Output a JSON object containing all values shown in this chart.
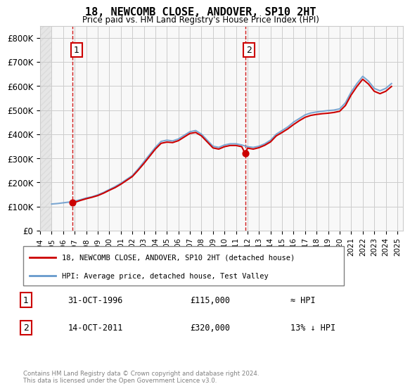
{
  "title": "18, NEWCOMB CLOSE, ANDOVER, SP10 2HT",
  "subtitle": "Price paid vs. HM Land Registry's House Price Index (HPI)",
  "legend_label1": "18, NEWCOMB CLOSE, ANDOVER, SP10 2HT (detached house)",
  "legend_label2": "HPI: Average price, detached house, Test Valley",
  "annotation1_label": "1",
  "annotation1_date": "31-OCT-1996",
  "annotation1_price": "£115,000",
  "annotation1_rel": "≈ HPI",
  "annotation2_label": "2",
  "annotation2_date": "14-OCT-2011",
  "annotation2_price": "£320,000",
  "annotation2_rel": "13% ↓ HPI",
  "footnote": "Contains HM Land Registry data © Crown copyright and database right 2024.\nThis data is licensed under the Open Government Licence v3.0.",
  "price_color": "#cc0000",
  "hpi_color": "#6699cc",
  "annotation_color": "#cc0000",
  "ylim": [
    0,
    850000
  ],
  "yticks": [
    0,
    100000,
    200000,
    300000,
    400000,
    500000,
    600000,
    700000,
    800000
  ],
  "xlim_start": 1994.0,
  "xlim_end": 2025.5,
  "purchase1_x": 1996.83,
  "purchase1_y": 115000,
  "purchase2_x": 2011.79,
  "purchase2_y": 320000,
  "hpi_years": [
    1995.0,
    1995.5,
    1996.0,
    1996.5,
    1997.0,
    1997.5,
    1998.0,
    1998.5,
    1999.0,
    1999.5,
    2000.0,
    2000.5,
    2001.0,
    2001.5,
    2002.0,
    2002.5,
    2003.0,
    2003.5,
    2004.0,
    2004.5,
    2005.0,
    2005.5,
    2006.0,
    2006.5,
    2007.0,
    2007.5,
    2008.0,
    2008.5,
    2009.0,
    2009.5,
    2010.0,
    2010.5,
    2011.0,
    2011.5,
    2012.0,
    2012.5,
    2013.0,
    2013.5,
    2014.0,
    2014.5,
    2015.0,
    2015.5,
    2016.0,
    2016.5,
    2017.0,
    2017.5,
    2018.0,
    2018.5,
    2019.0,
    2019.5,
    2020.0,
    2020.5,
    2021.0,
    2021.5,
    2022.0,
    2022.5,
    2023.0,
    2023.5,
    2024.0,
    2024.5
  ],
  "hpi_values": [
    110000,
    112000,
    115000,
    118000,
    122000,
    128000,
    135000,
    140000,
    148000,
    158000,
    170000,
    182000,
    196000,
    212000,
    228000,
    255000,
    285000,
    315000,
    345000,
    370000,
    375000,
    372000,
    380000,
    395000,
    410000,
    415000,
    400000,
    375000,
    350000,
    345000,
    355000,
    360000,
    360000,
    355000,
    348000,
    345000,
    350000,
    360000,
    375000,
    400000,
    415000,
    430000,
    450000,
    465000,
    480000,
    488000,
    492000,
    495000,
    498000,
    500000,
    505000,
    530000,
    575000,
    610000,
    640000,
    620000,
    590000,
    580000,
    590000,
    610000
  ],
  "price_years": [
    1996.83,
    1996.9,
    1997.0,
    1997.2,
    1997.5,
    1998.0,
    1998.5,
    1999.0,
    1999.5,
    2000.0,
    2000.5,
    2001.0,
    2001.5,
    2002.0,
    2002.5,
    2003.0,
    2003.5,
    2004.0,
    2004.5,
    2005.0,
    2005.5,
    2006.0,
    2006.5,
    2007.0,
    2007.5,
    2008.0,
    2008.5,
    2009.0,
    2009.5,
    2010.0,
    2010.5,
    2011.0,
    2011.5,
    2011.79,
    2012.0,
    2012.5,
    2013.0,
    2013.5,
    2014.0,
    2014.5,
    2015.0,
    2015.5,
    2016.0,
    2016.5,
    2017.0,
    2017.5,
    2018.0,
    2018.5,
    2019.0,
    2019.5,
    2020.0,
    2020.5,
    2021.0,
    2021.5,
    2022.0,
    2022.5,
    2023.0,
    2023.5,
    2024.0,
    2024.5
  ],
  "price_values": [
    115000,
    116000,
    118000,
    120000,
    125000,
    132000,
    138000,
    145000,
    155000,
    167000,
    178000,
    192000,
    208000,
    224000,
    250000,
    278000,
    308000,
    338000,
    362000,
    367000,
    365000,
    373000,
    388000,
    403000,
    407000,
    393000,
    368000,
    343000,
    338000,
    348000,
    353000,
    353000,
    348000,
    320000,
    342000,
    338000,
    344000,
    354000,
    368000,
    393000,
    407000,
    422000,
    440000,
    456000,
    470000,
    478000,
    482000,
    485000,
    487000,
    490000,
    495000,
    519000,
    563000,
    598000,
    628000,
    608000,
    578000,
    568000,
    578000,
    598000
  ],
  "xticks": [
    1994,
    1995,
    1996,
    1997,
    1998,
    1999,
    2000,
    2001,
    2002,
    2003,
    2004,
    2005,
    2006,
    2007,
    2008,
    2009,
    2010,
    2011,
    2012,
    2013,
    2014,
    2015,
    2016,
    2017,
    2018,
    2019,
    2020,
    2021,
    2022,
    2023,
    2024,
    2025
  ],
  "hatch_color": "#cccccc",
  "grid_color": "#cccccc",
  "bg_color": "#ffffff",
  "plot_bg": "#f8f8f8"
}
